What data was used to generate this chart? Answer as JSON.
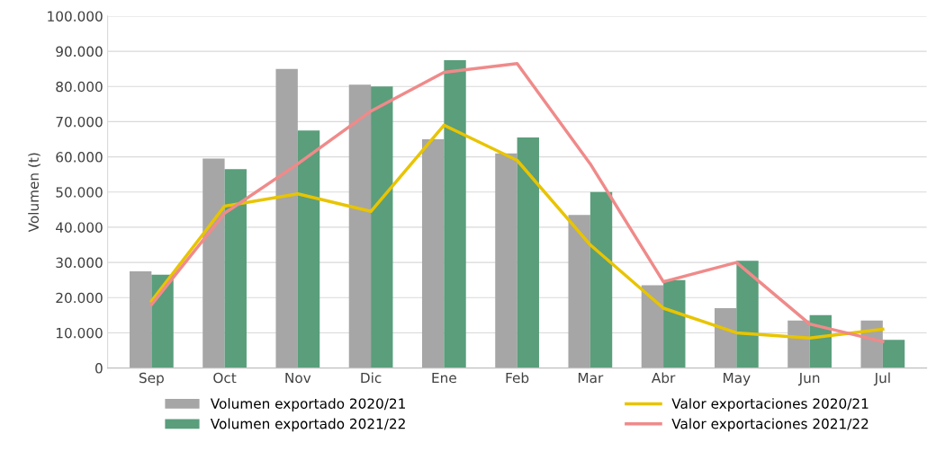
{
  "chart_data": {
    "type": "bar",
    "ylabel": "Volumen (t)",
    "categories": [
      "Sep",
      "Oct",
      "Nov",
      "Dic",
      "Ene",
      "Feb",
      "Mar",
      "Abr",
      "May",
      "Jun",
      "Jul"
    ],
    "series": [
      {
        "name": "Volumen exportado 2020/21",
        "color": "#a6a6a6",
        "values": [
          27500,
          59500,
          85000,
          80500,
          65000,
          61000,
          43500,
          23500,
          17000,
          13500,
          13500
        ]
      },
      {
        "name": "Volumen exportado 2021/22",
        "color": "#5a9e7c",
        "values": [
          26500,
          56500,
          67500,
          80000,
          87500,
          65500,
          50000,
          25000,
          30500,
          15000,
          8000
        ]
      },
      {
        "name": "Valor exportaciones 2020/21",
        "type": "line",
        "color": "#e8c400",
        "values": [
          19000,
          46000,
          49500,
          44500,
          69000,
          59000,
          35000,
          17000,
          10000,
          8500,
          11000
        ]
      },
      {
        "name": "Valor exportaciones 2021/22",
        "type": "line",
        "color": "#f08a8a",
        "values": [
          18000,
          44000,
          58000,
          73000,
          84000,
          86500,
          58000,
          24500,
          30000,
          12500,
          7500
        ]
      }
    ],
    "ylim": [
      0,
      100000
    ],
    "yticks": [
      0,
      {
        "value": 10000,
        "label": "10.000"
      },
      {
        "value": 20000,
        "label": "20.000"
      },
      {
        "value": 30000,
        "label": "30.000"
      },
      {
        "value": 40000,
        "label": "40.000"
      },
      {
        "value": 50000,
        "label": "50.000"
      },
      {
        "value": 60000,
        "label": "60.000"
      },
      {
        "value": 70000,
        "label": "70.000"
      },
      {
        "value": 80000,
        "label": "80.000"
      },
      {
        "value": 90000,
        "label": "90.000"
      },
      {
        "value": 100000,
        "label": "100.000"
      }
    ],
    "grid": "y",
    "legend": "bottom",
    "marker": "none",
    "line_style": "solid"
  }
}
